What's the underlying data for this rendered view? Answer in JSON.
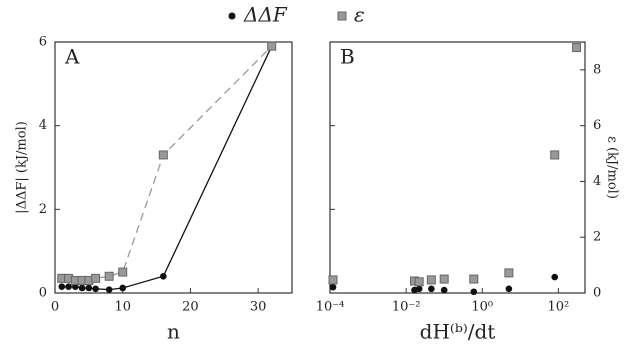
{
  "chart_data": [
    {
      "type": "line",
      "panel_label": "A",
      "x_label": "n",
      "y_label": "|ΔΔF| (kJ/mol)",
      "xlim": [
        0,
        35
      ],
      "xticks": [
        0,
        10,
        20,
        30
      ],
      "ylim": [
        0,
        6
      ],
      "yticks": [
        0,
        2,
        4,
        6
      ],
      "series": [
        {
          "name": "ΔΔF",
          "color": "#111111",
          "marker": "circle",
          "line_style": "solid",
          "x": [
            1,
            2,
            3,
            4,
            5,
            6,
            8,
            10,
            16,
            32
          ],
          "values": [
            0.15,
            0.15,
            0.15,
            0.12,
            0.12,
            0.1,
            0.08,
            0.12,
            0.4,
            5.9
          ]
        },
        {
          "name": "ε",
          "color": "#999999",
          "marker": "square",
          "line_style": "dashed",
          "x": [
            1,
            2,
            3,
            4,
            5,
            6,
            8,
            10,
            16,
            32
          ],
          "values": [
            0.35,
            0.35,
            0.3,
            0.3,
            0.3,
            0.35,
            0.4,
            0.5,
            3.3,
            5.9
          ]
        }
      ]
    },
    {
      "type": "scatter",
      "panel_label": "B",
      "x_label": "dH⁽ᵇ⁾/dt",
      "y2_label": "ε (kJ/mol)",
      "log_x": true,
      "xlim": [
        0.0001,
        500
      ],
      "xticks": [
        {
          "value": 0.0001,
          "label": "10⁻⁴"
        },
        {
          "value": 0.01,
          "label": "10⁻²"
        },
        {
          "value": 1,
          "label": "10⁰"
        },
        {
          "value": 100,
          "label": "10²"
        }
      ],
      "ylim": [
        0,
        6
      ],
      "yticks": [
        0,
        2,
        4,
        6
      ],
      "y2lim": [
        0,
        9
      ],
      "y2ticks": [
        0,
        2,
        4,
        6,
        8
      ],
      "series": [
        {
          "color": "#111111",
          "marker": "circle",
          "x": [
            0.00012,
            0.0166,
            0.022,
            0.046,
            0.1,
            0.6,
            5,
            80
          ],
          "values": [
            0.14,
            0.07,
            0.1,
            0.1,
            0.07,
            0.03,
            0.1,
            0.38
          ]
        },
        {
          "color": "#999999",
          "marker": "square",
          "axis": "y2",
          "x": [
            0.00012,
            0.0166,
            0.022,
            0.046,
            0.1,
            0.6,
            5,
            80,
            300
          ],
          "values": [
            0.47,
            0.43,
            0.4,
            0.47,
            0.5,
            0.5,
            0.72,
            4.95,
            8.8
          ]
        }
      ]
    }
  ]
}
